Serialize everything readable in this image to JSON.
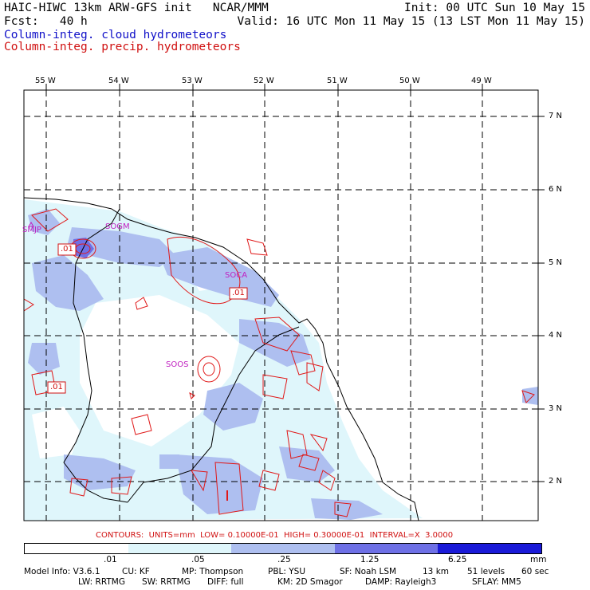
{
  "header": {
    "title": "HAIC-HIWC 13km ARW-GFS init   NCAR/MMM",
    "init": "Init: 00 UTC Sun 10 May 15",
    "fcst": "Fcst:   40 h",
    "valid": "Valid: 16 UTC Mon 11 May 15 (13 LST Mon 11 May 15)",
    "legend_cloud": "Column-integ. cloud hydrometeors",
    "legend_precip": "Column-integ. precip. hydrometeors"
  },
  "map": {
    "lon_labels": [
      "55 W",
      "54 W",
      "53 W",
      "52 W",
      "51 W",
      "50 W",
      "49 W"
    ],
    "lat_labels": [
      "7 N",
      "6 N",
      "5 N",
      "4 N",
      "3 N",
      "2 N"
    ],
    "station_labels": [
      "SMJP",
      "SOGM",
      "SOCA",
      "SOOS"
    ],
    "contour_labels": [
      ".01",
      ".01",
      ".01"
    ]
  },
  "contours_line": "CONTOURS:  UNITS=mm  LOW= 0.10000E-01  HIGH= 0.30000E-01  INTERVAL=X  3.0000",
  "colorbar": {
    "ticks": [
      ".01",
      ".05",
      ".25",
      "1.25",
      "6.25"
    ],
    "units": "mm",
    "colors": [
      "#ffffff",
      "#dff6fb",
      "#aebff0",
      "#6e70e6",
      "#1a1ad8"
    ]
  },
  "footer": {
    "row1": [
      "Model Info: V3.6.1",
      "CU: KF",
      "MP: Thompson",
      "PBL: YSU",
      "SF: Noah LSM",
      "13 km",
      "51 levels",
      "60 sec"
    ],
    "row2": [
      "LW: RRTMG",
      "SW: RRTMG",
      "DIFF: full",
      "KM: 2D Smagor",
      "DAMP: Rayleigh3",
      "SFLAY: MM5"
    ]
  }
}
